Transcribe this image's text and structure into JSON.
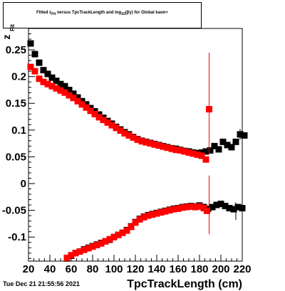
{
  "chart_data": {
    "type": "scatter",
    "title": {
      "p1": "Fitted  z",
      "sub1": "Fit",
      "p2": "  versus TpcTrackLength and log",
      "sub2": "10",
      "p3": "(βγ) for Global kaon+"
    },
    "xlabel": "TpcTrackLength (cm)",
    "ylabel": "z",
    "ylabel_sub": "Fit",
    "xlim": [
      20,
      220
    ],
    "ylim": [
      -0.145,
      0.29
    ],
    "x_ticks": [
      "20",
      "40",
      "60",
      "80",
      "100",
      "120",
      "140",
      "160",
      "180",
      "200",
      "220"
    ],
    "y_ticks": [
      "-0.1",
      "-0.05",
      "0",
      "0.05",
      "0.1",
      "0.15",
      "0.2",
      "0.25"
    ],
    "series": [
      {
        "color": "#000000",
        "upper": [
          [
            22,
            0.262
          ],
          [
            26,
            0.242
          ],
          [
            30,
            0.226
          ],
          [
            34,
            0.212
          ],
          [
            38,
            0.205
          ],
          [
            42,
            0.198
          ],
          [
            46,
            0.192
          ],
          [
            50,
            0.186
          ],
          [
            54,
            0.182
          ],
          [
            58,
            0.175
          ],
          [
            62,
            0.168
          ],
          [
            66,
            0.161
          ],
          [
            70,
            0.154
          ],
          [
            74,
            0.148
          ],
          [
            78,
            0.141
          ],
          [
            82,
            0.135
          ],
          [
            86,
            0.129
          ],
          [
            90,
            0.123
          ],
          [
            94,
            0.117
          ],
          [
            98,
            0.112
          ],
          [
            102,
            0.106
          ],
          [
            106,
            0.101
          ],
          [
            110,
            0.096
          ],
          [
            114,
            0.092
          ],
          [
            118,
            0.087
          ],
          [
            122,
            0.083
          ],
          [
            126,
            0.08
          ],
          [
            130,
            0.078
          ],
          [
            134,
            0.076
          ],
          [
            138,
            0.074
          ],
          [
            142,
            0.072
          ],
          [
            146,
            0.07
          ],
          [
            150,
            0.068
          ],
          [
            154,
            0.066
          ],
          [
            158,
            0.065
          ],
          [
            162,
            0.063
          ],
          [
            166,
            0.061
          ],
          [
            170,
            0.06
          ],
          [
            174,
            0.058
          ],
          [
            178,
            0.057
          ],
          [
            182,
            0.058
          ],
          [
            186,
            0.06
          ],
          [
            190,
            0.062
          ],
          [
            194,
            0.07
          ],
          [
            198,
            0.064
          ],
          [
            202,
            0.078
          ],
          [
            206,
            0.072
          ],
          [
            210,
            0.068
          ],
          [
            214,
            0.078
          ],
          [
            218,
            0.092
          ],
          [
            222,
            0.09
          ]
        ],
        "lower": [
          [
            56,
            -0.14
          ],
          [
            60,
            -0.135
          ],
          [
            64,
            -0.13
          ],
          [
            68,
            -0.127
          ],
          [
            72,
            -0.123
          ],
          [
            76,
            -0.12
          ],
          [
            80,
            -0.117
          ],
          [
            84,
            -0.114
          ],
          [
            88,
            -0.111
          ],
          [
            92,
            -0.108
          ],
          [
            96,
            -0.105
          ],
          [
            100,
            -0.1
          ],
          [
            104,
            -0.096
          ],
          [
            108,
            -0.092
          ],
          [
            112,
            -0.087
          ],
          [
            116,
            -0.08
          ],
          [
            120,
            -0.072
          ],
          [
            124,
            -0.066
          ],
          [
            128,
            -0.062
          ],
          [
            132,
            -0.059
          ],
          [
            136,
            -0.057
          ],
          [
            140,
            -0.055
          ],
          [
            144,
            -0.053
          ],
          [
            148,
            -0.051
          ],
          [
            152,
            -0.049
          ],
          [
            156,
            -0.047
          ],
          [
            160,
            -0.046
          ],
          [
            164,
            -0.044
          ],
          [
            168,
            -0.043
          ],
          [
            172,
            -0.042
          ],
          [
            176,
            -0.043
          ],
          [
            180,
            -0.041
          ],
          [
            184,
            -0.044
          ],
          [
            188,
            -0.047
          ],
          [
            192,
            -0.044
          ],
          [
            196,
            -0.04
          ],
          [
            200,
            -0.038
          ],
          [
            204,
            -0.042
          ],
          [
            208,
            -0.046
          ],
          [
            212,
            -0.048
          ],
          [
            216,
            -0.044
          ],
          [
            220,
            -0.046
          ]
        ]
      },
      {
        "color": "#ff0000",
        "upper": [
          [
            22,
            0.218
          ],
          [
            26,
            0.21
          ],
          [
            30,
            0.196
          ],
          [
            34,
            0.19
          ],
          [
            38,
            0.186
          ],
          [
            42,
            0.182
          ],
          [
            46,
            0.178
          ],
          [
            50,
            0.174
          ],
          [
            54,
            0.17
          ],
          [
            58,
            0.165
          ],
          [
            62,
            0.16
          ],
          [
            66,
            0.154
          ],
          [
            70,
            0.148
          ],
          [
            74,
            0.142
          ],
          [
            78,
            0.136
          ],
          [
            82,
            0.13
          ],
          [
            86,
            0.124
          ],
          [
            90,
            0.119
          ],
          [
            94,
            0.114
          ],
          [
            98,
            0.109
          ],
          [
            102,
            0.104
          ],
          [
            106,
            0.099
          ],
          [
            110,
            0.094
          ],
          [
            114,
            0.09
          ],
          [
            118,
            0.086
          ],
          [
            122,
            0.082
          ],
          [
            126,
            0.079
          ],
          [
            130,
            0.077
          ],
          [
            134,
            0.075
          ],
          [
            138,
            0.073
          ],
          [
            142,
            0.071
          ],
          [
            146,
            0.069
          ],
          [
            150,
            0.067
          ],
          [
            154,
            0.065
          ],
          [
            158,
            0.063
          ],
          [
            162,
            0.062
          ],
          [
            166,
            0.06
          ],
          [
            170,
            0.058
          ],
          [
            174,
            0.056
          ],
          [
            178,
            0.054
          ],
          [
            182,
            0.052
          ],
          [
            186,
            0.045
          ],
          [
            189,
            0.139
          ]
        ],
        "lower": [
          [
            56,
            -0.139
          ],
          [
            60,
            -0.134
          ],
          [
            64,
            -0.13
          ],
          [
            68,
            -0.127
          ],
          [
            72,
            -0.124
          ],
          [
            76,
            -0.121
          ],
          [
            80,
            -0.118
          ],
          [
            84,
            -0.115
          ],
          [
            88,
            -0.112
          ],
          [
            92,
            -0.108
          ],
          [
            96,
            -0.104
          ],
          [
            100,
            -0.1
          ],
          [
            104,
            -0.096
          ],
          [
            108,
            -0.092
          ],
          [
            112,
            -0.088
          ],
          [
            116,
            -0.081
          ],
          [
            120,
            -0.073
          ],
          [
            124,
            -0.067
          ],
          [
            128,
            -0.063
          ],
          [
            132,
            -0.06
          ],
          [
            136,
            -0.058
          ],
          [
            140,
            -0.056
          ],
          [
            144,
            -0.054
          ],
          [
            148,
            -0.052
          ],
          [
            152,
            -0.05
          ],
          [
            156,
            -0.048
          ],
          [
            160,
            -0.047
          ],
          [
            164,
            -0.045
          ],
          [
            168,
            -0.044
          ],
          [
            172,
            -0.043
          ],
          [
            176,
            -0.044
          ],
          [
            180,
            -0.043
          ],
          [
            184,
            -0.046
          ],
          [
            187,
            -0.051
          ]
        ]
      }
    ]
  },
  "timestamp": "Tue Dec 21 21:55:56 2021"
}
